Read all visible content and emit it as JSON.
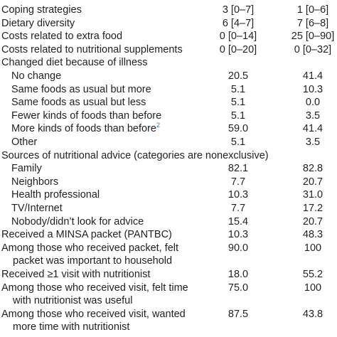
{
  "table": {
    "rows": [
      {
        "label": [
          "Coping strategies"
        ],
        "values": [
          "3 [0–7]",
          "1 [0–6]"
        ]
      },
      {
        "label": [
          "Dietary diversity"
        ],
        "values": [
          "6 [4–7]",
          "7 [6–8]"
        ]
      },
      {
        "label": [
          "Costs related to extra food"
        ],
        "values": [
          "0 [0–14]",
          "25 [0–90]"
        ]
      },
      {
        "label": [
          "Costs related to nutritional supplements"
        ],
        "values": [
          "0 [0–20]",
          "0 [0–32]"
        ]
      },
      {
        "label": [
          "Changed diet because of illness"
        ],
        "items": [
          {
            "label": [
              "No change"
            ],
            "values": [
              "20.5",
              "41.4"
            ]
          },
          {
            "label": [
              "Same foods as usual but more"
            ],
            "values": [
              "5.1",
              "10.3"
            ]
          },
          {
            "label": [
              "Same foods as usual but less"
            ],
            "values": [
              "5.1",
              "0.0"
            ]
          },
          {
            "label": [
              "Fewer kinds of foods than before"
            ],
            "values": [
              "5.1",
              "3.5"
            ]
          },
          {
            "label": [
              "More kinds of foods than before"
            ],
            "note": "2",
            "values": [
              "59.0",
              "41.4"
            ]
          },
          {
            "label": [
              "Other"
            ],
            "values": [
              "5.1",
              "3.5"
            ]
          }
        ]
      },
      {
        "label": [
          "Sources of nutritional advice (categories are nonexclusive)"
        ],
        "items": [
          {
            "label": [
              "Family"
            ],
            "values": [
              "82.1",
              "82.8"
            ]
          },
          {
            "label": [
              "Neighbors"
            ],
            "values": [
              "7.7",
              "20.7"
            ]
          },
          {
            "label": [
              "Health professional"
            ],
            "values": [
              "10.3",
              "31.0"
            ]
          },
          {
            "label": [
              "TV/Internet"
            ],
            "values": [
              "7.7",
              "17.2"
            ]
          },
          {
            "label": [
              "Nobody/didn’t look for advice"
            ],
            "values": [
              "15.4",
              "20.7"
            ]
          }
        ]
      },
      {
        "label": [
          "Received a MINSA packet (PANTBC)"
        ],
        "values": [
          "10.3",
          "48.3"
        ]
      },
      {
        "label": [
          "Among those who received packet, felt",
          "packet was important to household"
        ],
        "values": [
          "90.0",
          "100"
        ]
      },
      {
        "label": [
          "Received ≥1 visit with nutritionist"
        ],
        "values": [
          "18.0",
          "55.2"
        ]
      },
      {
        "label": [
          "Among those who received visit, felt time",
          "with nutritionist was useful"
        ],
        "values": [
          "75.0",
          "100"
        ]
      },
      {
        "label": [
          "Among those who received visit, wanted",
          "more time with nutritionist"
        ],
        "values": [
          "87.5",
          "43.8"
        ]
      }
    ]
  }
}
